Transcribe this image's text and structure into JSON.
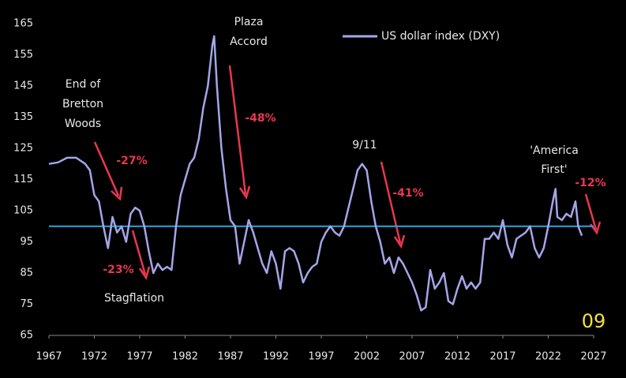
{
  "chart_data": {
    "type": "line",
    "x": [
      1967,
      1968,
      1969,
      1970,
      1971,
      1971.5,
      1972,
      1972.5,
      1973,
      1973.5,
      1974,
      1974.5,
      1975,
      1975.5,
      1976,
      1976.5,
      1977,
      1977.5,
      1978,
      1978.5,
      1979,
      1979.5,
      1980,
      1980.5,
      1981,
      1981.5,
      1982,
      1982.5,
      1983,
      1983.5,
      1984,
      1984.5,
      1985,
      1985.2,
      1985.5,
      1986,
      1986.5,
      1987,
      1987.5,
      1988,
      1988.5,
      1989,
      1989.5,
      1990,
      1990.5,
      1991,
      1991.5,
      1992,
      1992.5,
      1993,
      1993.5,
      1994,
      1994.5,
      1995,
      1995.5,
      1996,
      1996.5,
      1997,
      1997.5,
      1998,
      1998.5,
      1999,
      1999.5,
      2000,
      2000.5,
      2001,
      2001.5,
      2002,
      2002.5,
      2003,
      2003.5,
      2004,
      2004.5,
      2005,
      2005.5,
      2006,
      2006.5,
      2007,
      2007.5,
      2008,
      2008.5,
      2009,
      2009.5,
      2010,
      2010.5,
      2011,
      2011.5,
      2012,
      2012.5,
      2013,
      2013.5,
      2014,
      2014.5,
      2015,
      2015.5,
      2016,
      2016.5,
      2017,
      2017.5,
      2018,
      2018.5,
      2019,
      2019.5,
      2020,
      2020.5,
      2021,
      2021.5,
      2022,
      2022.5,
      2022.8,
      2023,
      2023.5,
      2024,
      2024.5,
      2025,
      2025.3,
      2025.7
    ],
    "series": [
      {
        "name": "US dollar index (DXY)",
        "color": "#a4a6e8",
        "values": [
          120,
          120.5,
          122,
          122,
          120,
          118,
          110,
          108,
          100,
          93,
          103,
          98,
          100,
          95,
          104,
          106,
          105,
          100,
          92,
          85,
          88,
          86,
          87,
          86,
          100,
          110,
          115,
          120,
          122,
          128,
          138,
          145,
          158,
          161,
          145,
          125,
          112,
          102,
          100,
          88,
          95,
          102,
          98,
          93,
          88,
          85,
          92,
          88,
          80,
          92,
          93,
          92,
          88,
          82,
          85,
          87,
          88,
          95,
          98,
          100,
          98,
          97,
          100,
          106,
          112,
          118,
          120,
          118,
          108,
          100,
          95,
          88,
          90,
          85,
          90,
          88,
          85,
          82,
          78,
          73,
          74,
          86,
          80,
          82,
          85,
          76,
          75,
          80,
          84,
          80,
          82,
          80,
          82,
          96,
          96,
          98,
          96,
          102,
          94,
          90,
          96,
          97,
          98,
          100,
          93,
          90,
          93,
          100,
          108,
          112,
          103,
          102,
          104,
          103,
          108,
          100,
          97
        ]
      }
    ],
    "reference_line": {
      "value": 100,
      "color": "#29a8e0"
    },
    "xlim": [
      1967,
      2027
    ],
    "xticks": [
      1967,
      1972,
      1977,
      1982,
      1987,
      1992,
      1997,
      2002,
      2007,
      2012,
      2017,
      2022,
      2027
    ],
    "ylim": [
      65,
      165
    ],
    "yticks": [
      65,
      75,
      85,
      95,
      105,
      115,
      125,
      135,
      145,
      155,
      165
    ],
    "annotations": [
      "End of",
      "Bretton",
      "Woods",
      "-27%",
      "-23%",
      "Stagflation",
      "Plaza",
      "Accord",
      "-48%",
      "9/11",
      "-41%",
      "'America",
      "First'",
      "-12%"
    ],
    "badge": "09"
  }
}
